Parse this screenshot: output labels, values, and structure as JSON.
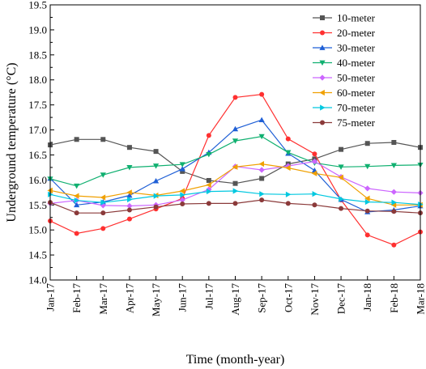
{
  "chart_data": {
    "type": "line",
    "xlabel": "Time (month-year)",
    "ylabel": "Underground temperature (°C)",
    "ylim": [
      14.0,
      19.5
    ],
    "yticks": [
      "14.0",
      "14.5",
      "15.0",
      "15.5",
      "16.0",
      "16.5",
      "17.0",
      "17.5",
      "18.0",
      "18.5",
      "19.0",
      "19.5"
    ],
    "categories": [
      "Jan-17",
      "Feb-17",
      "Mar-17",
      "Apr-17",
      "May-17",
      "Jun-17",
      "Jul-17",
      "Aug-17",
      "Sep-17",
      "Oct-17",
      "Nov-17",
      "Dec-17",
      "Jan-18",
      "Feb-18",
      "Mar-18"
    ],
    "legend_position": "top-right",
    "grid": false,
    "series": [
      {
        "name": "10-meter",
        "color": "#555555",
        "marker": "square",
        "values": [
          16.7,
          16.81,
          16.81,
          16.65,
          16.57,
          16.17,
          15.99,
          15.93,
          16.03,
          16.32,
          16.42,
          16.61,
          16.73,
          16.75,
          16.65
        ]
      },
      {
        "name": "20-meter",
        "color": "#ff3030",
        "marker": "circle",
        "values": [
          15.18,
          14.93,
          15.03,
          15.22,
          15.42,
          15.63,
          16.89,
          17.65,
          17.71,
          16.82,
          16.52,
          15.6,
          14.9,
          14.7,
          14.96
        ]
      },
      {
        "name": "30-meter",
        "color": "#1f5fd6",
        "marker": "triangle-up",
        "values": [
          16.03,
          15.5,
          15.56,
          15.69,
          15.98,
          16.22,
          16.55,
          17.02,
          17.2,
          16.53,
          16.19,
          15.61,
          15.36,
          15.4,
          15.48
        ]
      },
      {
        "name": "40-meter",
        "color": "#10b070",
        "marker": "triangle-down",
        "values": [
          16.02,
          15.88,
          16.1,
          16.25,
          16.28,
          16.31,
          16.51,
          16.78,
          16.87,
          16.55,
          16.34,
          16.26,
          16.27,
          16.29,
          16.3
        ]
      },
      {
        "name": "50-meter",
        "color": "#cc66ff",
        "marker": "diamond",
        "values": [
          15.53,
          15.59,
          15.49,
          15.48,
          15.5,
          15.6,
          15.81,
          16.27,
          16.2,
          16.28,
          16.37,
          16.06,
          15.83,
          15.76,
          15.74
        ]
      },
      {
        "name": "60-meter",
        "color": "#f0a000",
        "marker": "triangle-left",
        "values": [
          15.79,
          15.68,
          15.65,
          15.75,
          15.69,
          15.78,
          15.9,
          16.26,
          16.32,
          16.24,
          16.13,
          16.05,
          15.63,
          15.5,
          15.5
        ]
      },
      {
        "name": "70-meter",
        "color": "#00c8e0",
        "marker": "triangle-right",
        "values": [
          15.71,
          15.59,
          15.55,
          15.61,
          15.68,
          15.7,
          15.77,
          15.78,
          15.72,
          15.71,
          15.72,
          15.62,
          15.56,
          15.55,
          15.51
        ]
      },
      {
        "name": "75-meter",
        "color": "#8b3a3a",
        "marker": "circle",
        "values": [
          15.55,
          15.34,
          15.34,
          15.4,
          15.46,
          15.52,
          15.53,
          15.53,
          15.6,
          15.53,
          15.5,
          15.43,
          15.38,
          15.37,
          15.34
        ]
      }
    ]
  }
}
